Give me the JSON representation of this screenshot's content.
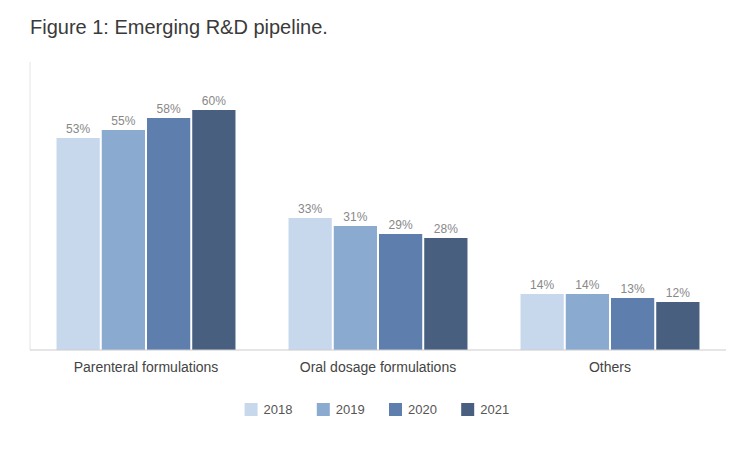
{
  "chart_data": {
    "type": "bar",
    "title": "Figure 1: Emerging R&D pipeline.",
    "categories": [
      "Parenteral formulations",
      "Oral dosage formulations",
      "Others"
    ],
    "series": [
      {
        "name": "2018",
        "color": "#C8D8EC",
        "values": [
          53,
          33,
          14
        ],
        "value_labels": [
          "53%",
          "33%",
          "14%"
        ]
      },
      {
        "name": "2019",
        "color": "#8AAAD0",
        "values": [
          55,
          31,
          14
        ],
        "value_labels": [
          "55%",
          "31%",
          "14%"
        ]
      },
      {
        "name": "2020",
        "color": "#5E7FAE",
        "values": [
          58,
          29,
          13
        ],
        "value_labels": [
          "58%",
          "29%",
          "13%"
        ]
      },
      {
        "name": "2021",
        "color": "#485F80",
        "values": [
          60,
          28,
          12
        ],
        "value_labels": [
          "60%",
          "28%",
          "12%"
        ]
      }
    ],
    "ylim": [
      0,
      72
    ],
    "data_labels": true,
    "tick_labels": "x",
    "grid": false,
    "legend": "bottom"
  }
}
